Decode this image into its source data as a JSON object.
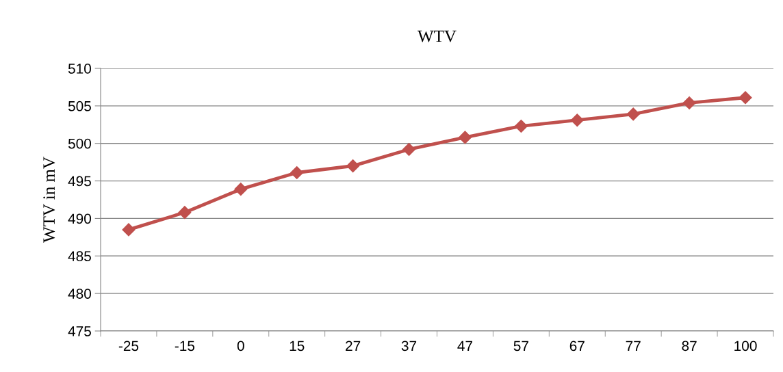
{
  "chart_data": {
    "type": "line",
    "title": "WTV",
    "ylabel": "WTV in mV",
    "categories": [
      "-25",
      "-15",
      "0",
      "15",
      "27",
      "37",
      "47",
      "57",
      "67",
      "77",
      "87",
      "100"
    ],
    "series": [
      {
        "color": "#c0504d",
        "values": [
          488.5,
          490.8,
          493.9,
          496.1,
          497.0,
          499.2,
          500.8,
          502.3,
          503.1,
          503.9,
          505.4,
          506.1
        ]
      }
    ],
    "ylim": [
      475,
      510
    ],
    "yticks": [
      475,
      480,
      485,
      490,
      495,
      500,
      505,
      510
    ],
    "grid": "y",
    "marker": "diamond",
    "line_style": "solid"
  }
}
